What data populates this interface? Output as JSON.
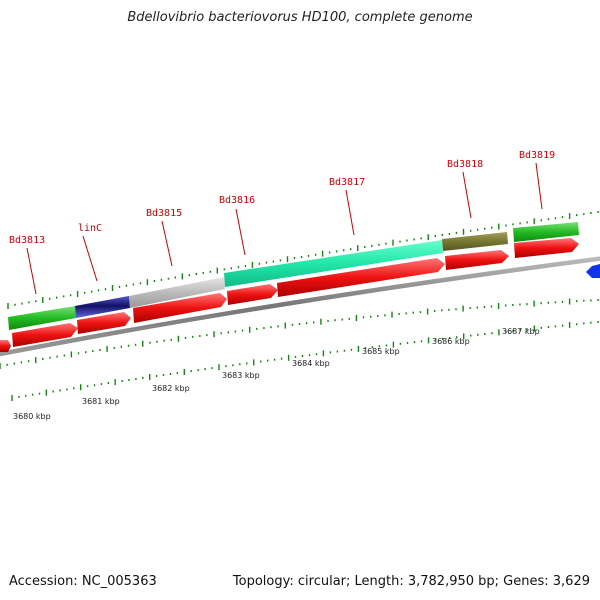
{
  "title": "Bdellovibrio bacteriovorus HD100, complete genome",
  "footer": {
    "accession": "Accession: NC_005363",
    "summary": "Topology: circular; Length: 3,782,950 bp; Genes: 3,629"
  },
  "colors": {
    "cds": "#ee1111",
    "backbone": "#888888",
    "tick": "#118811",
    "label": "#cc0000",
    "strand_blue": "#1133ee"
  },
  "gene_labels": [
    "Bd3813",
    "linC",
    "Bd3815",
    "Bd3816",
    "Bd3817",
    "Bd3818",
    "Bd3819"
  ],
  "kbp_labels": [
    "3680 kbp",
    "3681 kbp",
    "3682 kbp",
    "3683 kbp",
    "3684 kbp",
    "3685 kbp",
    "3686 kbp",
    "3687 kbp"
  ]
}
